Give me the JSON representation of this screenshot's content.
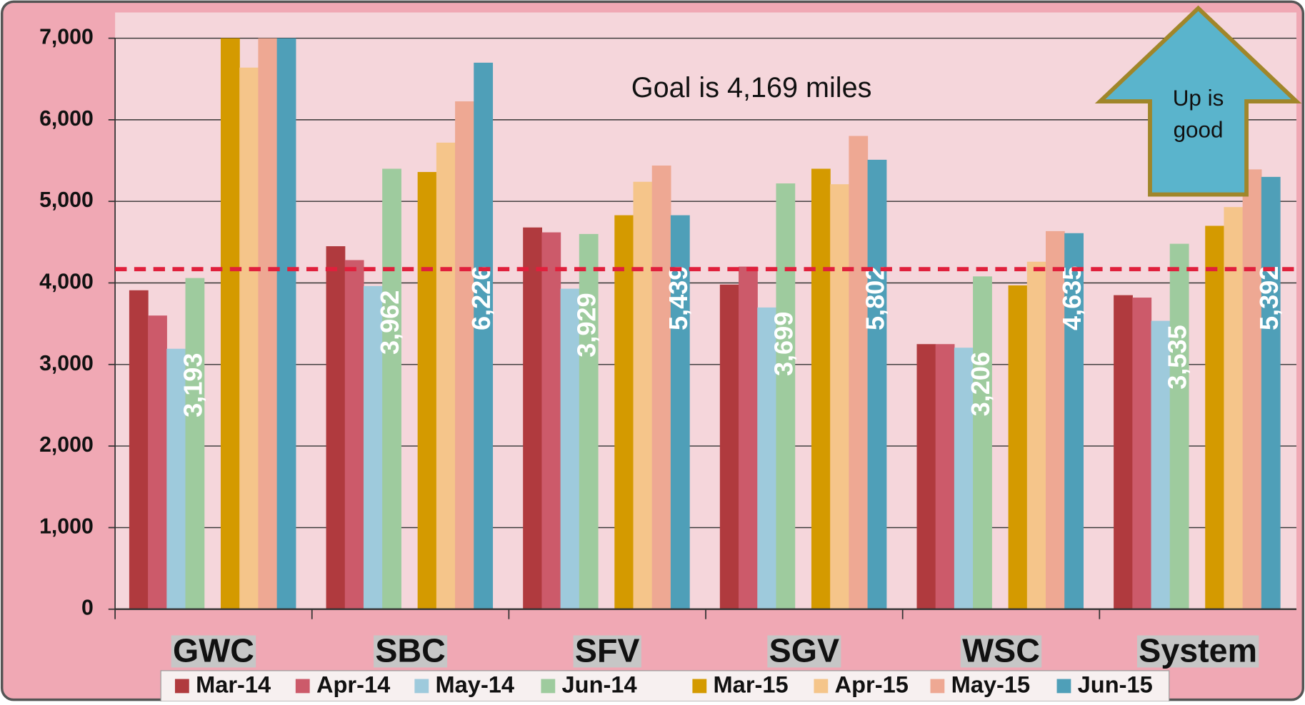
{
  "chart_data": {
    "type": "bar",
    "annotation": "Goal is 4,169 miles",
    "goal_line": 4169,
    "arrow_text": [
      "Up is",
      "good"
    ],
    "categories": [
      "GWC",
      "SBC",
      "SFV",
      "SGV",
      "WSC",
      "System"
    ],
    "series": [
      {
        "name": "Mar-14",
        "color": "#b03a3e",
        "values": [
          3910,
          4450,
          4680,
          3980,
          3250,
          3850
        ]
      },
      {
        "name": "Apr-14",
        "color": "#cc5a6a",
        "values": [
          3600,
          4280,
          4620,
          4200,
          3250,
          3820
        ]
      },
      {
        "name": "May-14",
        "color": "#9ecadc",
        "values": [
          3193,
          3962,
          3929,
          3699,
          3206,
          3535
        ],
        "value_labels": [
          "3,193",
          "3,962",
          "3,929",
          "3,699",
          "3,206",
          "3,535"
        ]
      },
      {
        "name": "Jun-14",
        "color": "#9ecb9e",
        "values": [
          4060,
          5400,
          4600,
          5220,
          4080,
          4480
        ]
      },
      {
        "name": "Mar-15",
        "color": "#d49a00",
        "values": [
          7000,
          5360,
          4830,
          5400,
          3970,
          4700
        ]
      },
      {
        "name": "Apr-15",
        "color": "#f5c58a",
        "values": [
          6640,
          5720,
          5240,
          5210,
          4260,
          4930
        ]
      },
      {
        "name": "May-15",
        "color": "#eea893",
        "values": [
          7000,
          6226,
          5439,
          5802,
          4635,
          5392
        ],
        "value_labels": [
          null,
          "6,226",
          "5,439",
          "5,802",
          "4,635",
          "5,392"
        ]
      },
      {
        "name": "Jun-15",
        "color": "#4f9fb8",
        "values": [
          7000,
          6700,
          4830,
          5510,
          4610,
          5300
        ]
      }
    ],
    "ylim": [
      0,
      7000
    ],
    "yticks": [
      0,
      {
        "value": 1000,
        "label": "1,000"
      },
      {
        "value": 2000,
        "label": "2,000"
      },
      {
        "value": 3000,
        "label": "3,000"
      },
      {
        "value": 4000,
        "label": "4,000"
      },
      {
        "value": 5000,
        "label": "5,000"
      },
      {
        "value": 6000,
        "label": "6,000"
      },
      {
        "value": 7000,
        "label": "7,000"
      }
    ],
    "grid": true
  }
}
